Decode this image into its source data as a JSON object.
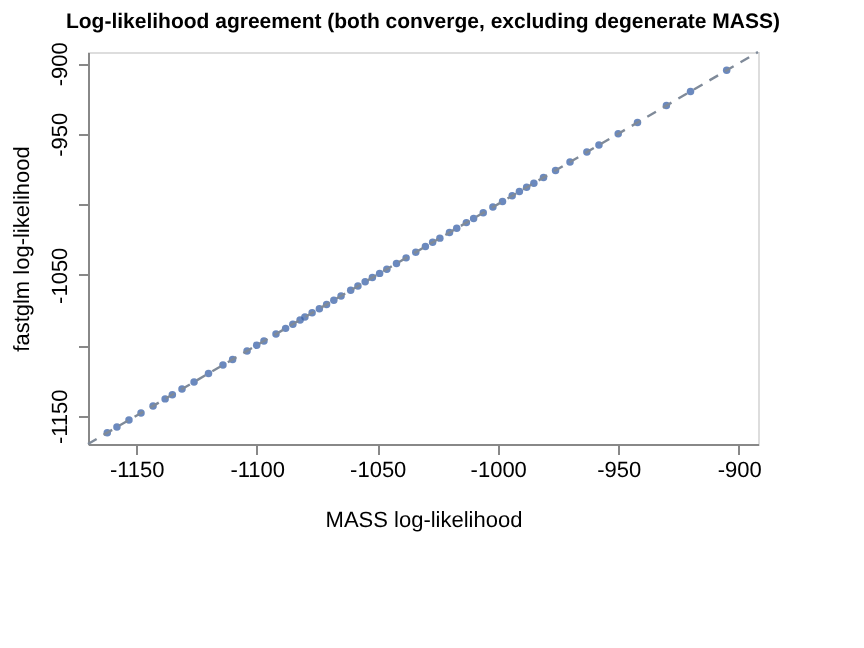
{
  "chart_data": {
    "type": "scatter",
    "title": "Log-likelihood agreement (both converge, excluding degenerate MASS)",
    "xlabel": "MASS log-likelihood",
    "ylabel": "fastglm log-likelihood",
    "xlim": [
      -1170,
      -892
    ],
    "ylim": [
      -1170,
      -892
    ],
    "xticks": [
      -1150,
      -1100,
      -1050,
      -1000,
      -950,
      -900
    ],
    "yticks": [
      -1150,
      {
        "value": -1100,
        "label": null
      },
      -1050,
      {
        "value": -1000,
        "label": null
      },
      -950,
      -900
    ],
    "grid": false,
    "marker": "circle",
    "series": [
      {
        "color": "#3a62a8",
        "x": [
          -1162,
          -1158,
          -1153,
          -1148,
          -1143,
          -1138,
          -1135,
          -1131,
          -1126,
          -1120,
          -1114,
          -1110,
          -1104,
          -1100,
          -1097,
          -1092,
          -1088,
          -1085,
          -1082,
          -1080,
          -1077,
          -1074,
          -1071,
          -1068,
          -1065,
          -1061,
          -1058,
          -1055,
          -1052,
          -1049,
          -1046,
          -1042,
          -1038,
          -1034,
          -1030,
          -1027,
          -1024,
          -1020,
          -1017,
          -1013,
          -1010,
          -1006,
          -1002,
          -998,
          -994,
          -991,
          -988,
          -985,
          -981,
          -976,
          -970,
          -963,
          -958,
          -950,
          -942,
          -930,
          -920,
          -905
        ],
        "values": [
          -1162,
          -1158,
          -1153,
          -1148,
          -1143,
          -1138,
          -1135,
          -1131,
          -1126,
          -1120,
          -1114,
          -1110,
          -1104,
          -1100,
          -1097,
          -1092,
          -1088,
          -1085,
          -1082,
          -1080,
          -1077,
          -1074,
          -1071,
          -1068,
          -1065,
          -1061,
          -1058,
          -1055,
          -1052,
          -1049,
          -1046,
          -1042,
          -1038,
          -1034,
          -1030,
          -1027,
          -1024,
          -1020,
          -1017,
          -1013,
          -1010,
          -1006,
          -1002,
          -998,
          -994,
          -991,
          -988,
          -985,
          -981,
          -976,
          -970,
          -963,
          -958,
          -950,
          -942,
          -930,
          -920,
          -905
        ]
      },
      {
        "type": "line",
        "color": "#7f8a99",
        "line_style": "dashed",
        "marker": "none",
        "x": [
          -1170,
          -892
        ],
        "values": [
          -1170,
          -892
        ]
      }
    ]
  }
}
